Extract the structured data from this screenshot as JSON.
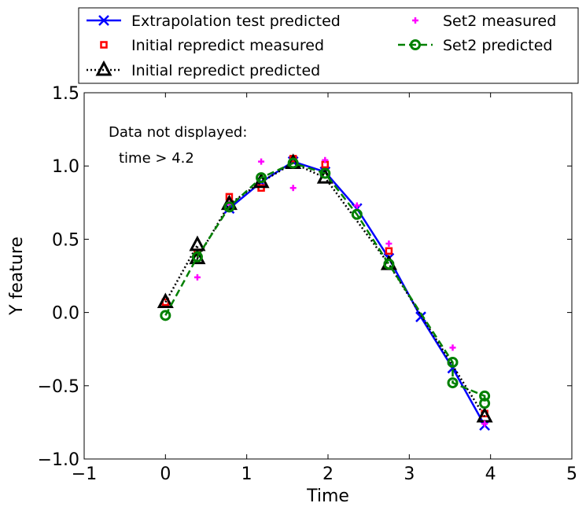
{
  "chart_data": {
    "type": "line",
    "xlabel": "Time",
    "ylabel": "Y feature",
    "xlim": [
      -1,
      5
    ],
    "ylim": [
      -1.0,
      1.5
    ],
    "xticks": [
      -1,
      0,
      1,
      2,
      3,
      4,
      5
    ],
    "xtick_labels": [
      "−1",
      "0",
      "1",
      "2",
      "3",
      "4",
      "5"
    ],
    "yticks": [
      -1.0,
      -0.5,
      0.0,
      0.5,
      1.0,
      1.5
    ],
    "ytick_labels": [
      "−1.0",
      "−0.5",
      "0.0",
      "0.5",
      "1.0",
      "1.5"
    ],
    "grid": false,
    "legend_position": "top, above plot, two columns",
    "annotation": {
      "line1": "Data not displayed:",
      "line2": "time > 4.2"
    },
    "series": [
      {
        "name": "Extrapolation test predicted",
        "color": "#0000ff",
        "style": "solid-line-x-marker",
        "x": [
          0.785,
          1.178,
          1.571,
          1.964,
          2.356,
          2.749,
          3.142,
          3.534,
          3.927
        ],
        "y": [
          0.71,
          0.89,
          1.03,
          0.96,
          0.71,
          0.37,
          -0.03,
          -0.38,
          -0.77
        ]
      },
      {
        "name": "Initial repredict measured",
        "color": "#ff0000",
        "style": "square-marker",
        "x": [
          0,
          0.393,
          0.785,
          1.178,
          1.571,
          1.964,
          2.749,
          3.927
        ],
        "y": [
          0.07,
          0.41,
          0.79,
          0.85,
          1.05,
          1.01,
          0.42,
          -0.69
        ]
      },
      {
        "name": "Initial repredict predicted",
        "color": "#000000",
        "style": "dotted-line-triangle-marker",
        "x": [
          0,
          0.393,
          0.393,
          0.785,
          1.178,
          1.571,
          1.964,
          2.749,
          3.927
        ],
        "y": [
          0.07,
          0.46,
          0.37,
          0.74,
          0.89,
          1.02,
          0.92,
          0.33,
          -0.71
        ]
      },
      {
        "name": "Set2 measured",
        "color": "#ff00ff",
        "style": "plus-marker",
        "x": [
          0.393,
          0.785,
          1.178,
          1.571,
          1.964,
          2.356,
          2.749,
          3.534,
          3.927
        ],
        "y": [
          0.24,
          0.74,
          1.03,
          0.85,
          1.04,
          0.73,
          0.47,
          -0.24,
          -0.76
        ]
      },
      {
        "name": "Set2 predicted",
        "color": "#008000",
        "style": "dashed-line-circle-marker",
        "x": [
          0,
          0.393,
          0.785,
          1.178,
          1.571,
          1.964,
          2.356,
          2.749,
          3.534,
          3.534,
          3.927,
          3.927
        ],
        "y": [
          -0.02,
          0.38,
          0.72,
          0.92,
          1.02,
          0.95,
          0.67,
          0.33,
          -0.34,
          -0.48,
          -0.57,
          -0.62
        ]
      }
    ]
  }
}
